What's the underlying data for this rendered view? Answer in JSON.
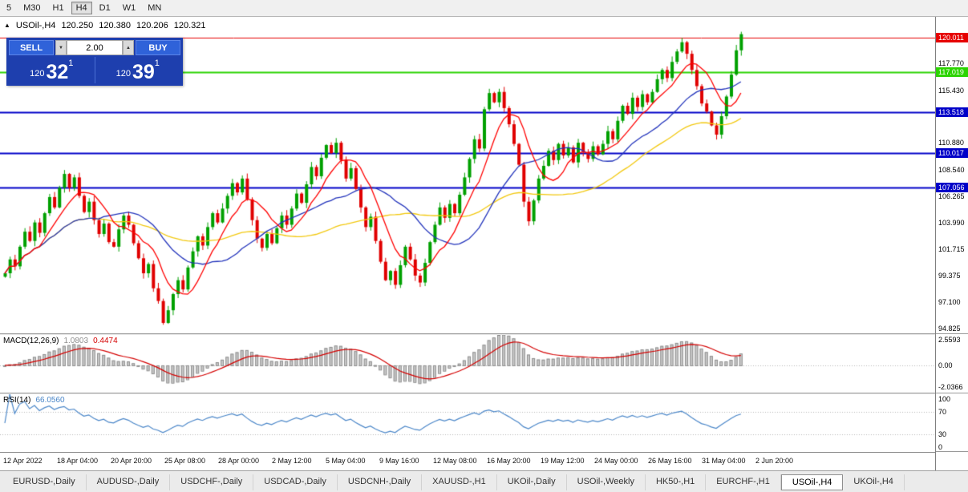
{
  "toolbar": {
    "timeframes": [
      "5",
      "M30",
      "H1",
      "H4",
      "D1",
      "W1",
      "MN"
    ],
    "active": "H4"
  },
  "icons": {
    "collapse": "▲",
    "spin_down": "▼",
    "spin_up": "▲"
  },
  "chart": {
    "symbol_title": "USOil-,H4",
    "ohlc": {
      "open": "120.250",
      "high": "120.380",
      "low": "120.206",
      "close": "120.321"
    }
  },
  "trade": {
    "sell_label": "SELL",
    "buy_label": "BUY",
    "volume": "2.00",
    "bid": {
      "whole": "120",
      "pips": "32",
      "pip": "1"
    },
    "ask": {
      "whole": "120",
      "pips": "39",
      "pip": "1"
    }
  },
  "macd": {
    "title": "MACD(12,26,9)",
    "main": "1.0803",
    "signal": "0.4474",
    "axis_ticks": [
      "2.5593",
      "0.00",
      "-2.0366"
    ]
  },
  "rsi": {
    "title": "RSI(14)",
    "value": "66.0560",
    "axis_ticks": [
      "100",
      "70",
      "30",
      "0"
    ]
  },
  "time_axis": {
    "labels": [
      "12 Apr 2022",
      "18 Apr 04:00",
      "20 Apr 20:00",
      "25 Apr 08:00",
      "28 Apr 00:00",
      "2 May 12:00",
      "5 May 04:00",
      "9 May 16:00",
      "12 May 08:00",
      "16 May 20:00",
      "19 May 12:00",
      "24 May 00:00",
      "26 May 16:00",
      "31 May 04:00",
      "2 Jun 20:00"
    ]
  },
  "tabbar": {
    "tabs": [
      "EURUSD-,Daily",
      "AUDUSD-,Daily",
      "USDCHF-,Daily",
      "USDCAD-,Daily",
      "USDCNH-,Daily",
      "XAUUSD-,H1",
      "UKOil-,Daily",
      "USOil-,Weekly",
      "HK50-,H1",
      "EURCHF-,H1",
      "USOil-,H4",
      "UKOil-,H4"
    ],
    "active": "USOil-,H4"
  },
  "colors": {
    "bull": "#00a000",
    "bear": "#e00000",
    "ma_fast": "#ff0000",
    "ma_mid": "#2233bb",
    "ma_slow": "#f2c80f",
    "macd_hist_fill": "#c9c9c9",
    "macd_hist_stroke": "#8f8f8f",
    "macd_signal": "#d40000",
    "rsi_line": "#4a86c8",
    "grid_dot": "#b8b8b8",
    "level_red": "#e60000",
    "level_green": "#2bd400",
    "level_blue": "#0000c8"
  },
  "chart_data": {
    "type": "candlestick",
    "symbol": "USOil-",
    "timeframe": "H4",
    "ohlc_display": {
      "open": 120.25,
      "high": 120.38,
      "low": 120.206,
      "close": 120.321
    },
    "x_labels": [
      "12 Apr 2022",
      "18 Apr 04:00",
      "20 Apr 20:00",
      "25 Apr 08:00",
      "28 Apr 00:00",
      "2 May 12:00",
      "5 May 04:00",
      "9 May 16:00",
      "12 May 08:00",
      "16 May 20:00",
      "19 May 12:00",
      "24 May 00:00",
      "26 May 16:00",
      "31 May 04:00",
      "2 Jun 20:00"
    ],
    "closes": [
      99.6,
      100.8,
      100.2,
      101.9,
      103.2,
      102.4,
      104.0,
      103.1,
      104.8,
      106.2,
      105.3,
      107.0,
      108.2,
      107.0,
      107.9,
      106.3,
      104.9,
      105.8,
      104.2,
      103.0,
      103.9,
      102.3,
      101.9,
      103.4,
      104.6,
      103.8,
      102.2,
      100.9,
      99.6,
      100.4,
      98.3,
      97.2,
      95.3,
      96.4,
      97.8,
      99.0,
      98.2,
      100.1,
      101.5,
      102.8,
      102.0,
      103.6,
      104.8,
      104.0,
      105.2,
      106.3,
      107.4,
      106.6,
      107.8,
      106.0,
      104.2,
      102.6,
      101.8,
      103.0,
      102.2,
      103.5,
      104.6,
      103.8,
      105.2,
      106.5,
      105.7,
      107.3,
      108.8,
      108.0,
      109.6,
      110.7,
      110.0,
      110.9,
      109.4,
      107.8,
      108.7,
      106.9,
      105.3,
      103.6,
      104.5,
      102.4,
      100.6,
      99.0,
      99.8,
      98.6,
      100.3,
      101.9,
      100.8,
      99.4,
      98.8,
      100.5,
      102.3,
      103.8,
      105.3,
      104.4,
      105.6,
      104.8,
      106.4,
      107.9,
      109.5,
      111.2,
      110.4,
      113.8,
      115.2,
      114.4,
      115.3,
      113.9,
      112.5,
      110.8,
      109.0,
      105.8,
      104.1,
      105.9,
      107.8,
      108.9,
      110.2,
      109.4,
      110.8,
      109.8,
      110.5,
      109.2,
      110.9,
      110.1,
      109.5,
      110.6,
      109.9,
      110.8,
      111.9,
      111.2,
      112.8,
      114.1,
      113.4,
      114.8,
      114.0,
      115.1,
      114.4,
      115.3,
      116.4,
      117.2,
      116.5,
      117.9,
      118.8,
      119.6,
      118.6,
      117.2,
      115.8,
      114.3,
      113.6,
      112.4,
      111.6,
      113.2,
      114.9,
      116.8,
      118.9,
      120.3
    ],
    "price_axis": {
      "min": 94.4,
      "max": 121.8,
      "tick_labels": [
        "117.770",
        "115.430",
        "110.880",
        "108.540",
        "106.265",
        "103.990",
        "101.715",
        "99.375",
        "97.100",
        "94.825"
      ]
    },
    "levels": [
      {
        "price": 120.011,
        "label": "120.011",
        "color": "#e60000",
        "width": 1
      },
      {
        "price": 117.019,
        "label": "117.019",
        "color": "#2bd400",
        "width": 2
      },
      {
        "price": 113.518,
        "label": "113.518",
        "color": "#0000c8",
        "width": 2
      },
      {
        "price": 110.017,
        "label": "110.017",
        "color": "#0000c8",
        "width": 2
      },
      {
        "price": 107.056,
        "label": "107.056",
        "color": "#0000c8",
        "width": 2
      }
    ],
    "moving_averages": [
      {
        "period": 8,
        "color": "#ff0000"
      },
      {
        "period": 20,
        "color": "#2233bb"
      },
      {
        "period": 45,
        "color": "#f2c80f"
      }
    ],
    "indicators": [
      {
        "name": "MACD",
        "params": "12,26,9",
        "displayed_values": [
          1.0803,
          0.4474
        ],
        "axis_ticks": [
          2.5593,
          0.0,
          -2.0366
        ],
        "range": [
          -2.6,
          2.9
        ]
      },
      {
        "name": "RSI",
        "params": "14",
        "displayed_value": 66.056,
        "levels": [
          70,
          30
        ],
        "axis_ticks": [
          100,
          70,
          30,
          0
        ],
        "range": [
          0,
          100
        ]
      }
    ]
  }
}
